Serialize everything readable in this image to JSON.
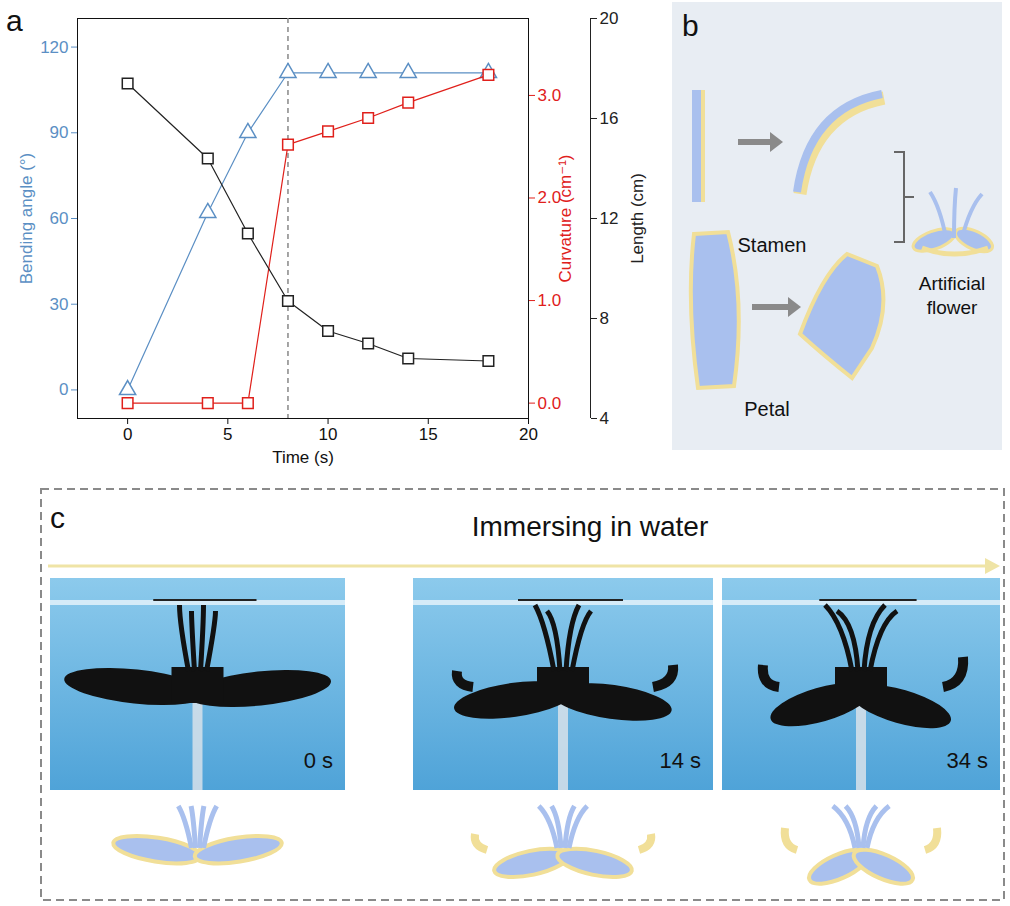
{
  "chart_data": {
    "type": "line",
    "x": [
      0,
      4,
      6,
      8,
      10,
      12,
      14,
      18
    ],
    "xlabel": "Time (s)",
    "xlim": [
      -2.5,
      20
    ],
    "xticks": [
      0,
      5,
      10,
      15,
      20
    ],
    "ylabel": "Bending angle (°)",
    "ylim": [
      -10,
      130
    ],
    "yticks": [
      0,
      30,
      60,
      90,
      120
    ],
    "y2label": "Curvature (cm⁻¹)",
    "y2lim": [
      -0.15,
      3.75
    ],
    "y2ticks": [
      0,
      1,
      2,
      3
    ],
    "y3label": "Length (cm)",
    "y3lim": [
      4,
      20
    ],
    "y3ticks": [
      4,
      8,
      12,
      16,
      20
    ],
    "reference_x": 8,
    "series": [
      {
        "color": "#5b8fc4",
        "marker": "triangle",
        "values": [
          0,
          62,
          90,
          111,
          111,
          111,
          111,
          111
        ]
      },
      {
        "axis": "y2",
        "color": "#e0201b",
        "marker": "square",
        "values": [
          0,
          0,
          0,
          2.52,
          2.65,
          2.78,
          2.93,
          3.2
        ]
      },
      {
        "axis": "y3",
        "color": "#222222",
        "marker": "square",
        "values": [
          17.4,
          14.4,
          11.4,
          8.7,
          7.5,
          7.0,
          6.4,
          6.3
        ]
      }
    ]
  },
  "figure": {
    "panel_labels": [
      "a",
      "b",
      "c"
    ],
    "panel_b": {
      "stamen": "Stamen",
      "petal": "Petal",
      "result": "Artificial flower"
    },
    "panel_c": {
      "title": "Immersing in water",
      "frames": [
        "0 s",
        "14 s",
        "34 s"
      ]
    }
  }
}
